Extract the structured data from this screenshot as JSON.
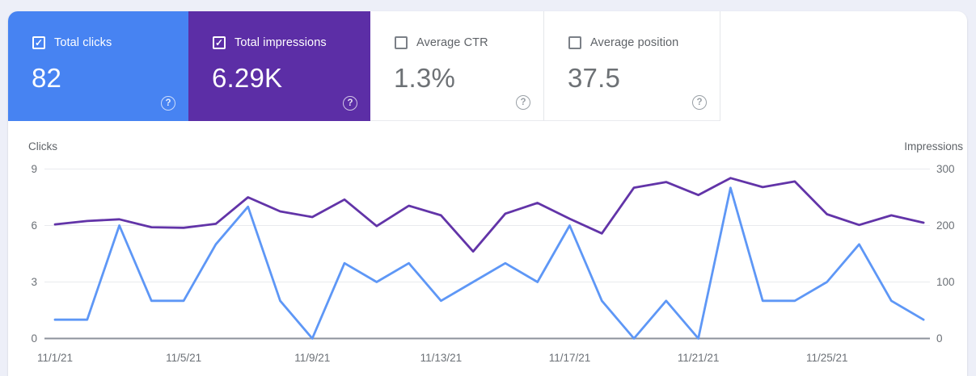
{
  "page": {
    "background": "#edeff8",
    "panel_background": "#ffffff"
  },
  "cards": [
    {
      "label": "Total clicks",
      "value": "82",
      "checked": true,
      "background": "#4783f2",
      "label_color": "#ffffff",
      "value_color": "#ffffff",
      "help_icon": "?"
    },
    {
      "label": "Total impressions",
      "value": "6.29K",
      "checked": true,
      "background": "#5c2ea6",
      "label_color": "#ffffff",
      "value_color": "#ffffff",
      "help_icon": "?"
    },
    {
      "label": "Average CTR",
      "value": "1.3%",
      "checked": false,
      "background": "#ffffff",
      "label_color": "#5f6368",
      "value_color": "#6d7175",
      "help_icon": "?"
    },
    {
      "label": "Average position",
      "value": "37.5",
      "checked": false,
      "background": "#ffffff",
      "label_color": "#5f6368",
      "value_color": "#6d7175",
      "help_icon": "?"
    }
  ],
  "chart_data": {
    "type": "line",
    "x": [
      "11/1/21",
      "11/2/21",
      "11/3/21",
      "11/4/21",
      "11/5/21",
      "11/6/21",
      "11/7/21",
      "11/8/21",
      "11/9/21",
      "11/10/21",
      "11/11/21",
      "11/12/21",
      "11/13/21",
      "11/14/21",
      "11/15/21",
      "11/16/21",
      "11/17/21",
      "11/18/21",
      "11/19/21",
      "11/20/21",
      "11/21/21",
      "11/22/21",
      "11/23/21",
      "11/24/21",
      "11/25/21",
      "11/26/21",
      "11/27/21",
      "11/28/21"
    ],
    "x_tick_labels": [
      "11/1/21",
      "11/5/21",
      "11/9/21",
      "11/13/21",
      "11/17/21",
      "11/21/21",
      "11/25/21"
    ],
    "left_axis": {
      "title": "Clicks",
      "ticks": [
        "9",
        "6",
        "3",
        "0"
      ],
      "range": [
        0,
        9
      ]
    },
    "right_axis": {
      "title": "Impressions",
      "ticks": [
        "300",
        "200",
        "100",
        "0"
      ],
      "range": [
        0,
        300
      ]
    },
    "series": [
      {
        "name": "Total clicks",
        "axis": "left",
        "color": "#5e97f6",
        "values": [
          1,
          1,
          6,
          2,
          2,
          5,
          7,
          2,
          0,
          4,
          3,
          4,
          2,
          3,
          4,
          3,
          6,
          2,
          0,
          2,
          0,
          8,
          2,
          2,
          3,
          5,
          2,
          1
        ]
      },
      {
        "name": "Total impressions",
        "axis": "right",
        "color": "#6234a8",
        "values": [
          202,
          208,
          211,
          197,
          196,
          203,
          250,
          225,
          215,
          246,
          199,
          235,
          218,
          154,
          221,
          240,
          212,
          186,
          267,
          277,
          254,
          284,
          268,
          278,
          220,
          201,
          218,
          205
        ]
      }
    ],
    "grid": true,
    "legend": "none"
  }
}
